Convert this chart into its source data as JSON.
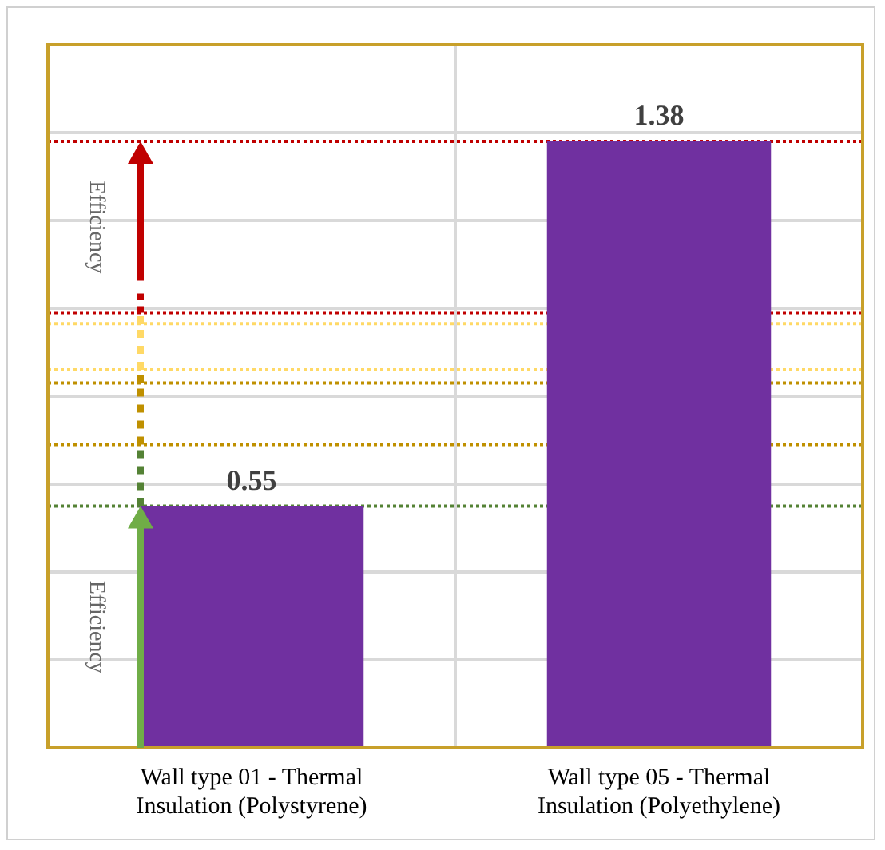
{
  "chart_data": {
    "type": "bar",
    "categories": [
      "Wall type 01 - Thermal Insulation (Polystyrene)",
      "Wall type 05 - Thermal Insulation (Polyethylene)"
    ],
    "values": [
      0.55,
      1.38
    ],
    "color": "#7030a0",
    "data_labels": true,
    "ylim": [
      0,
      1.6
    ],
    "yticks": [
      {
        "value": 0,
        "label": null
      },
      {
        "value": 0.2,
        "label": null
      },
      {
        "value": 0.4,
        "label": null
      },
      {
        "value": 0.6,
        "label": null
      },
      {
        "value": 0.8,
        "label": null
      },
      {
        "value": 1,
        "label": null
      },
      {
        "value": 1.2,
        "label": null
      },
      {
        "value": 1.4,
        "label": null
      },
      {
        "value": 1.6,
        "label": null
      }
    ],
    "tick_labels": "x",
    "grid": true,
    "legend": false,
    "ref_lines": [
      {
        "axis": "y",
        "value": 1.38,
        "color": "#c00000",
        "line_style": "dotted"
      },
      {
        "axis": "y",
        "value": 0.99,
        "color": "#c00000",
        "line_style": "dotted"
      },
      {
        "axis": "y",
        "value": 0.965,
        "color": "#ffd966",
        "line_style": "dotted"
      },
      {
        "axis": "y",
        "value": 0.86,
        "color": "#ffd966",
        "line_style": "dotted"
      },
      {
        "axis": "y",
        "value": 0.83,
        "color": "#bf9000",
        "line_style": "dotted"
      },
      {
        "axis": "y",
        "value": 0.69,
        "color": "#bf9000",
        "line_style": "dotted"
      },
      {
        "axis": "y",
        "value": 0.55,
        "color": "#548235",
        "line_style": "dotted"
      }
    ],
    "annotations": [
      "Efficiency",
      "Efficiency"
    ]
  }
}
